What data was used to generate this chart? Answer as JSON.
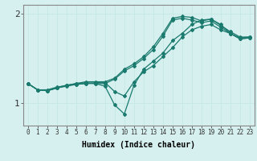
{
  "xlabel": "Humidex (Indice chaleur)",
  "background_color": "#d6f0ef",
  "line_color": "#1a7a6e",
  "grid_color": "#c8e8e5",
  "x_values": [
    0,
    1,
    2,
    3,
    4,
    5,
    6,
    7,
    8,
    9,
    10,
    11,
    12,
    13,
    14,
    15,
    16,
    17,
    18,
    19,
    20,
    21,
    22,
    23
  ],
  "series": [
    [
      1.22,
      1.15,
      1.14,
      1.17,
      1.2,
      1.22,
      1.24,
      1.24,
      1.24,
      1.28,
      1.38,
      1.44,
      1.52,
      1.63,
      1.78,
      1.95,
      1.97,
      1.96,
      1.92,
      1.94,
      1.87,
      1.8,
      1.74,
      1.74
    ],
    [
      1.22,
      1.15,
      1.14,
      1.17,
      1.2,
      1.22,
      1.23,
      1.22,
      1.22,
      1.27,
      1.36,
      1.42,
      1.5,
      1.6,
      1.75,
      1.93,
      1.95,
      1.93,
      1.9,
      1.92,
      1.85,
      1.78,
      1.72,
      1.73
    ],
    [
      1.22,
      1.15,
      1.15,
      1.18,
      1.2,
      1.21,
      1.22,
      1.23,
      1.23,
      1.13,
      1.08,
      1.24,
      1.35,
      1.42,
      1.52,
      1.62,
      1.74,
      1.82,
      1.86,
      1.88,
      1.82,
      1.78,
      1.73,
      1.74
    ],
    [
      1.22,
      1.15,
      1.14,
      1.17,
      1.19,
      1.21,
      1.22,
      1.22,
      1.19,
      0.98,
      0.88,
      1.2,
      1.38,
      1.47,
      1.56,
      1.7,
      1.78,
      1.88,
      1.93,
      1.94,
      1.88,
      1.78,
      1.72,
      1.73
    ]
  ],
  "ylim": [
    0.75,
    2.1
  ],
  "ytick_positions": [
    1.0,
    2.0
  ],
  "ytick_labels": [
    "1",
    "2"
  ],
  "xtick_labels": [
    "0",
    "1",
    "2",
    "3",
    "4",
    "5",
    "6",
    "7",
    "8",
    "9",
    "10",
    "11",
    "12",
    "13",
    "14",
    "15",
    "16",
    "17",
    "18",
    "19",
    "20",
    "21",
    "22",
    "23"
  ],
  "marker": "D",
  "markersize": 2.0,
  "linewidth": 0.9
}
